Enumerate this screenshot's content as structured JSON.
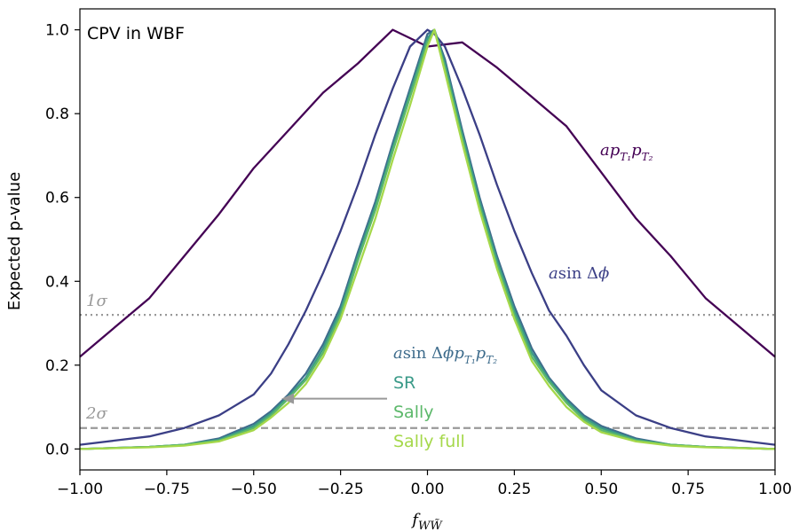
{
  "chart_data": {
    "type": "line",
    "title": "CPV in WBF",
    "xlabel": "f_{WW̃}",
    "ylabel": "Expected p-value",
    "xlim": [
      -1.0,
      1.0
    ],
    "ylim": [
      -0.05,
      1.05
    ],
    "grid": false,
    "xticks": [
      -1.0,
      -0.75,
      -0.5,
      -0.25,
      0.0,
      0.25,
      0.5,
      0.75,
      1.0
    ],
    "xtick_labels": [
      "−1.00",
      "−0.75",
      "−0.50",
      "−0.25",
      "0.00",
      "0.25",
      "0.50",
      "0.75",
      "1.00"
    ],
    "yticks": [
      0.0,
      0.2,
      0.4,
      0.6,
      0.8,
      1.0
    ],
    "ytick_labels": [
      "0.0",
      "0.2",
      "0.4",
      "0.6",
      "0.8",
      "1.0"
    ],
    "reference_lines": [
      {
        "label": "1σ",
        "y": 0.32,
        "style": "dotted",
        "color": "#999999"
      },
      {
        "label": "2σ",
        "y": 0.05,
        "style": "dashed",
        "color": "#999999"
      }
    ],
    "series": [
      {
        "name": "a p_{T1} p_{T2}",
        "color": "#440154",
        "x": [
          -1.0,
          -0.9,
          -0.8,
          -0.7,
          -0.6,
          -0.5,
          -0.4,
          -0.3,
          -0.2,
          -0.1,
          0.0,
          0.1,
          0.2,
          0.3,
          0.4,
          0.5,
          0.6,
          0.7,
          0.8,
          0.9,
          1.0
        ],
        "y": [
          0.22,
          0.29,
          0.36,
          0.46,
          0.56,
          0.67,
          0.76,
          0.85,
          0.92,
          1.0,
          0.96,
          0.97,
          0.91,
          0.84,
          0.77,
          0.66,
          0.55,
          0.46,
          0.36,
          0.29,
          0.22
        ]
      },
      {
        "name": "a sin Δφ",
        "color": "#3b3f86",
        "x": [
          -1.0,
          -0.9,
          -0.8,
          -0.7,
          -0.6,
          -0.5,
          -0.45,
          -0.4,
          -0.35,
          -0.3,
          -0.25,
          -0.2,
          -0.15,
          -0.1,
          -0.05,
          0.0,
          0.02,
          0.05,
          0.1,
          0.15,
          0.2,
          0.25,
          0.3,
          0.35,
          0.4,
          0.45,
          0.5,
          0.6,
          0.7,
          0.8,
          0.9,
          1.0
        ],
        "y": [
          0.01,
          0.02,
          0.03,
          0.05,
          0.08,
          0.13,
          0.18,
          0.25,
          0.33,
          0.42,
          0.52,
          0.63,
          0.75,
          0.86,
          0.96,
          1.0,
          0.99,
          0.96,
          0.86,
          0.75,
          0.63,
          0.52,
          0.42,
          0.33,
          0.27,
          0.2,
          0.14,
          0.08,
          0.05,
          0.03,
          0.02,
          0.01
        ]
      },
      {
        "name": "a sin Δφ p_{T1} p_{T2}",
        "color": "#3e6c8c",
        "x": [
          -1.0,
          -0.8,
          -0.7,
          -0.6,
          -0.5,
          -0.45,
          -0.4,
          -0.35,
          -0.3,
          -0.25,
          -0.2,
          -0.15,
          -0.1,
          -0.05,
          0.0,
          0.02,
          0.05,
          0.1,
          0.15,
          0.2,
          0.25,
          0.3,
          0.35,
          0.4,
          0.45,
          0.5,
          0.6,
          0.7,
          0.8,
          1.0
        ],
        "y": [
          0.0,
          0.005,
          0.01,
          0.025,
          0.06,
          0.09,
          0.13,
          0.18,
          0.25,
          0.34,
          0.47,
          0.59,
          0.73,
          0.86,
          0.99,
          1.0,
          0.93,
          0.76,
          0.6,
          0.46,
          0.34,
          0.24,
          0.17,
          0.12,
          0.08,
          0.055,
          0.025,
          0.01,
          0.005,
          0.0
        ]
      },
      {
        "name": "SR",
        "color": "#3a9a88",
        "x": [
          -1.0,
          -0.8,
          -0.7,
          -0.6,
          -0.5,
          -0.45,
          -0.4,
          -0.35,
          -0.3,
          -0.25,
          -0.2,
          -0.15,
          -0.1,
          -0.05,
          0.0,
          0.02,
          0.05,
          0.1,
          0.15,
          0.2,
          0.25,
          0.3,
          0.35,
          0.4,
          0.45,
          0.5,
          0.6,
          0.7,
          0.8,
          1.0
        ],
        "y": [
          0.0,
          0.005,
          0.01,
          0.022,
          0.055,
          0.085,
          0.125,
          0.17,
          0.24,
          0.33,
          0.46,
          0.58,
          0.72,
          0.85,
          0.98,
          1.0,
          0.92,
          0.75,
          0.59,
          0.45,
          0.33,
          0.23,
          0.165,
          0.115,
          0.075,
          0.05,
          0.022,
          0.01,
          0.005,
          0.0
        ]
      },
      {
        "name": "Sally",
        "color": "#5cb86a",
        "x": [
          -1.0,
          -0.8,
          -0.7,
          -0.6,
          -0.5,
          -0.45,
          -0.4,
          -0.35,
          -0.3,
          -0.25,
          -0.2,
          -0.15,
          -0.1,
          -0.05,
          0.0,
          0.02,
          0.05,
          0.1,
          0.15,
          0.2,
          0.25,
          0.3,
          0.35,
          0.4,
          0.45,
          0.5,
          0.6,
          0.7,
          0.8,
          1.0
        ],
        "y": [
          0.0,
          0.005,
          0.01,
          0.02,
          0.05,
          0.08,
          0.12,
          0.165,
          0.23,
          0.32,
          0.45,
          0.57,
          0.71,
          0.84,
          0.97,
          1.0,
          0.91,
          0.74,
          0.58,
          0.44,
          0.32,
          0.22,
          0.16,
          0.11,
          0.07,
          0.045,
          0.02,
          0.01,
          0.005,
          0.0
        ]
      },
      {
        "name": "Sally full",
        "color": "#a5d84a",
        "x": [
          -1.0,
          -0.8,
          -0.7,
          -0.6,
          -0.5,
          -0.45,
          -0.4,
          -0.35,
          -0.3,
          -0.25,
          -0.2,
          -0.15,
          -0.1,
          -0.05,
          0.0,
          0.02,
          0.05,
          0.1,
          0.15,
          0.2,
          0.25,
          0.3,
          0.35,
          0.4,
          0.45,
          0.5,
          0.6,
          0.7,
          0.8,
          1.0
        ],
        "y": [
          0.0,
          0.004,
          0.008,
          0.018,
          0.045,
          0.075,
          0.11,
          0.155,
          0.22,
          0.31,
          0.43,
          0.55,
          0.69,
          0.82,
          0.96,
          1.0,
          0.9,
          0.73,
          0.57,
          0.43,
          0.31,
          0.21,
          0.15,
          0.1,
          0.065,
          0.04,
          0.018,
          0.008,
          0.004,
          0.0
        ]
      }
    ],
    "annotations": [
      {
        "text": "σ",
        "prefix": "1",
        "color": "#999999"
      },
      {
        "text": "σ",
        "prefix": "2",
        "color": "#999999"
      }
    ],
    "arrow": {
      "from": [
        -0.08,
        0.12
      ],
      "to": [
        -0.42,
        0.12
      ],
      "color": "#999999"
    }
  }
}
